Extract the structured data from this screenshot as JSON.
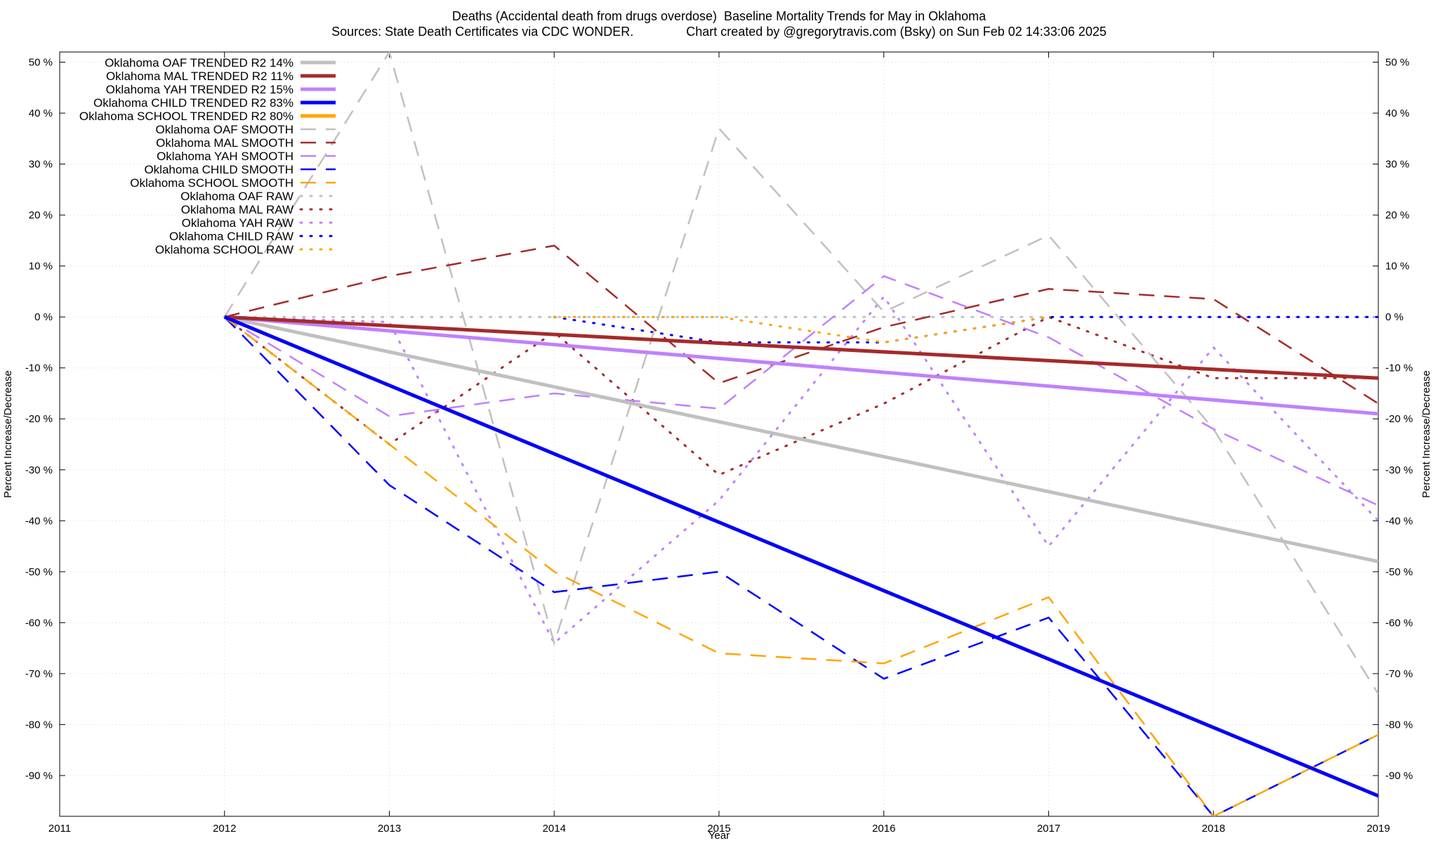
{
  "title_line1": "Deaths (Accidental death from drugs overdose)  Baseline Mortality Trends for May in Oklahoma",
  "title_line2": "Sources: State Death Certificates via CDC WONDER.               Chart created by @gregorytravis.com (Bsky) on Sun Feb 02 14:33:06 2025",
  "chart_data": {
    "type": "line",
    "xlabel": "Year",
    "ylabel": "Percent Increase/Decrease",
    "xlim": [
      2011,
      2019
    ],
    "ylim": [
      -98,
      52
    ],
    "x_ticks": [
      "2011",
      "2012",
      "2013",
      "2014",
      "2015",
      "2016",
      "2017",
      "2018",
      "2019"
    ],
    "y_ticks": [
      50,
      40,
      30,
      20,
      10,
      0,
      -10,
      -20,
      -30,
      -40,
      -50,
      -60,
      -70,
      -80,
      -90
    ],
    "y_tick_labels": [
      "50 %",
      "40 %",
      "30 %",
      "20 %",
      "10 %",
      "0 %",
      "-10 %",
      "-20 %",
      "-30 %",
      "-40 %",
      "-50 %",
      "-60 %",
      "-70 %",
      "-80 %",
      "-90 %"
    ],
    "grid": true,
    "legend_position": "top-left",
    "series": [
      {
        "name": "Oklahoma OAF TRENDED R2  14%",
        "style": "solid",
        "color": "#c0c0c0",
        "x": [
          2012,
          2019
        ],
        "y": [
          0,
          -48
        ]
      },
      {
        "name": "Oklahoma MAL TRENDED R2  11%",
        "style": "solid",
        "color": "#a52a2a",
        "x": [
          2012,
          2019
        ],
        "y": [
          0,
          -12
        ]
      },
      {
        "name": "Oklahoma YAH TRENDED R2  15%",
        "style": "solid",
        "color": "#c080ff",
        "x": [
          2012,
          2019
        ],
        "y": [
          0,
          -19
        ]
      },
      {
        "name": "Oklahoma CHILD TRENDED R2  83%",
        "style": "solid",
        "color": "#0000ff",
        "x": [
          2012,
          2019
        ],
        "y": [
          0,
          -94
        ]
      },
      {
        "name": "Oklahoma SCHOOL TRENDED R2  80%",
        "style": "solid",
        "color": "#ffa500",
        "x": [
          2012,
          2019
        ],
        "y": [
          0,
          -94
        ]
      },
      {
        "name": "Oklahoma OAF SMOOTH",
        "style": "dashed",
        "color": "#c0c0c0",
        "x": [
          2012,
          2013,
          2014,
          2015,
          2016,
          2017,
          2018,
          2019
        ],
        "y": [
          0,
          52,
          -64,
          37,
          1,
          16,
          -22,
          -74
        ]
      },
      {
        "name": "Oklahoma MAL SMOOTH",
        "style": "dashed",
        "color": "#a52a2a",
        "x": [
          2012,
          2013,
          2014,
          2015,
          2016,
          2017,
          2018,
          2019
        ],
        "y": [
          0,
          8,
          14,
          -13,
          -2,
          5.5,
          3.5,
          -17
        ]
      },
      {
        "name": "Oklahoma YAH SMOOTH",
        "style": "dashed",
        "color": "#c080ff",
        "x": [
          2012,
          2013,
          2014,
          2015,
          2016,
          2017,
          2018,
          2019
        ],
        "y": [
          0,
          -19.5,
          -15,
          -18,
          8,
          -4,
          -22,
          -37
        ]
      },
      {
        "name": "Oklahoma CHILD SMOOTH",
        "style": "dashed",
        "color": "#0000ff",
        "x": [
          2012,
          2013,
          2014,
          2015,
          2016,
          2017,
          2018,
          2019
        ],
        "y": [
          0,
          -33,
          -54,
          -50,
          -71,
          -59,
          -98,
          -82
        ]
      },
      {
        "name": "Oklahoma SCHOOL SMOOTH",
        "style": "dashed",
        "color": "#ffa500",
        "x": [
          2012,
          2013,
          2014,
          2015,
          2016,
          2017,
          2018,
          2019
        ],
        "y": [
          0,
          -25,
          -50,
          -66,
          -68,
          -55,
          -98,
          -82
        ]
      },
      {
        "name": "Oklahoma OAF RAW",
        "style": "dotted",
        "color": "#c0c0c0",
        "x": [
          2012,
          2013,
          2014,
          2015,
          2016,
          2017,
          2018,
          2019
        ],
        "y": [
          0,
          0,
          0,
          0,
          0,
          0,
          0,
          0
        ]
      },
      {
        "name": "Oklahoma MAL RAW",
        "style": "dotted",
        "color": "#a52a2a",
        "x": [
          2012,
          2013,
          2014,
          2015,
          2016,
          2017,
          2018,
          2019
        ],
        "y": [
          0,
          -25,
          -3,
          -31,
          -17,
          0,
          -12,
          -12
        ]
      },
      {
        "name": "Oklahoma YAH RAW",
        "style": "dotted",
        "color": "#c080ff",
        "x": [
          2012,
          2013,
          2014,
          2015,
          2016,
          2017,
          2018,
          2019
        ],
        "y": [
          0,
          -1,
          -64,
          -36,
          4,
          -45,
          -6,
          -40
        ]
      },
      {
        "name": "Oklahoma CHILD RAW",
        "style": "dotted",
        "color": "#0000ff",
        "x": [
          2014,
          2015,
          2016,
          2017,
          2018,
          2019
        ],
        "y": [
          0,
          -5,
          -5,
          0,
          0,
          0
        ]
      },
      {
        "name": "Oklahoma SCHOOL RAW",
        "style": "dotted",
        "color": "#ffa500",
        "x": [
          2014,
          2015,
          2016,
          2017
        ],
        "y": [
          0,
          0,
          -5,
          0
        ]
      }
    ]
  }
}
